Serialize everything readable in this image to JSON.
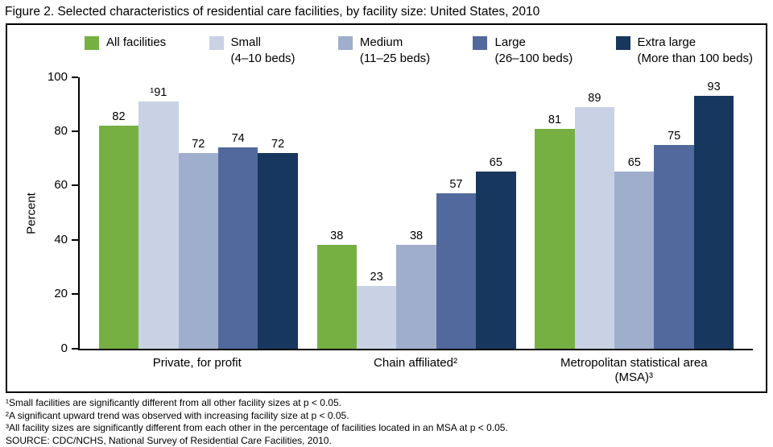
{
  "title": "Figure 2. Selected characteristics of residential care facilities, by facility size: United States, 2010",
  "chart_data": {
    "type": "bar",
    "title": "Selected characteristics of residential care facilities, by facility size: United States, 2010",
    "xlabel": "",
    "ylabel": "Percent",
    "ylim": [
      0,
      100
    ],
    "yticks": [
      0,
      20,
      40,
      60,
      80,
      100
    ],
    "grid": false,
    "legend_position": "top",
    "categories": [
      "Private, for profit",
      "Chain affiliated²",
      "Metropolitan statistical area (MSA)³"
    ],
    "series": [
      {
        "name": "All facilities",
        "sublabel": "",
        "color": "#76b043",
        "values": [
          82,
          38,
          81
        ],
        "labels": [
          "82",
          "38",
          "81"
        ]
      },
      {
        "name": "Small",
        "sublabel": "(4–10 beds)",
        "color": "#c8d2e4",
        "values": [
          91,
          23,
          89
        ],
        "labels": [
          "¹91",
          "23",
          "89"
        ]
      },
      {
        "name": "Medium",
        "sublabel": "(11–25 beds)",
        "color": "#a0aecd",
        "values": [
          72,
          38,
          65
        ],
        "labels": [
          "72",
          "38",
          "65"
        ]
      },
      {
        "name": "Large",
        "sublabel": "(26–100 beds)",
        "color": "#51699c",
        "values": [
          74,
          57,
          75
        ],
        "labels": [
          "74",
          "57",
          "75"
        ]
      },
      {
        "name": "Extra large",
        "sublabel": "(More than 100 beds)",
        "color": "#17375e",
        "values": [
          72,
          65,
          93
        ],
        "labels": [
          "72",
          "65",
          "93"
        ]
      }
    ]
  },
  "footnotes": [
    "¹Small facilities are significantly different from all other facility sizes at p < 0.05.",
    "²A significant upward trend was observed with increasing facility size at p < 0.05.",
    "³All facility sizes are significantly different from each other in the percentage of facilities located in an MSA at p < 0.05.",
    "SOURCE: CDC/NCHS, National Survey of Residential Care Facilities, 2010."
  ]
}
